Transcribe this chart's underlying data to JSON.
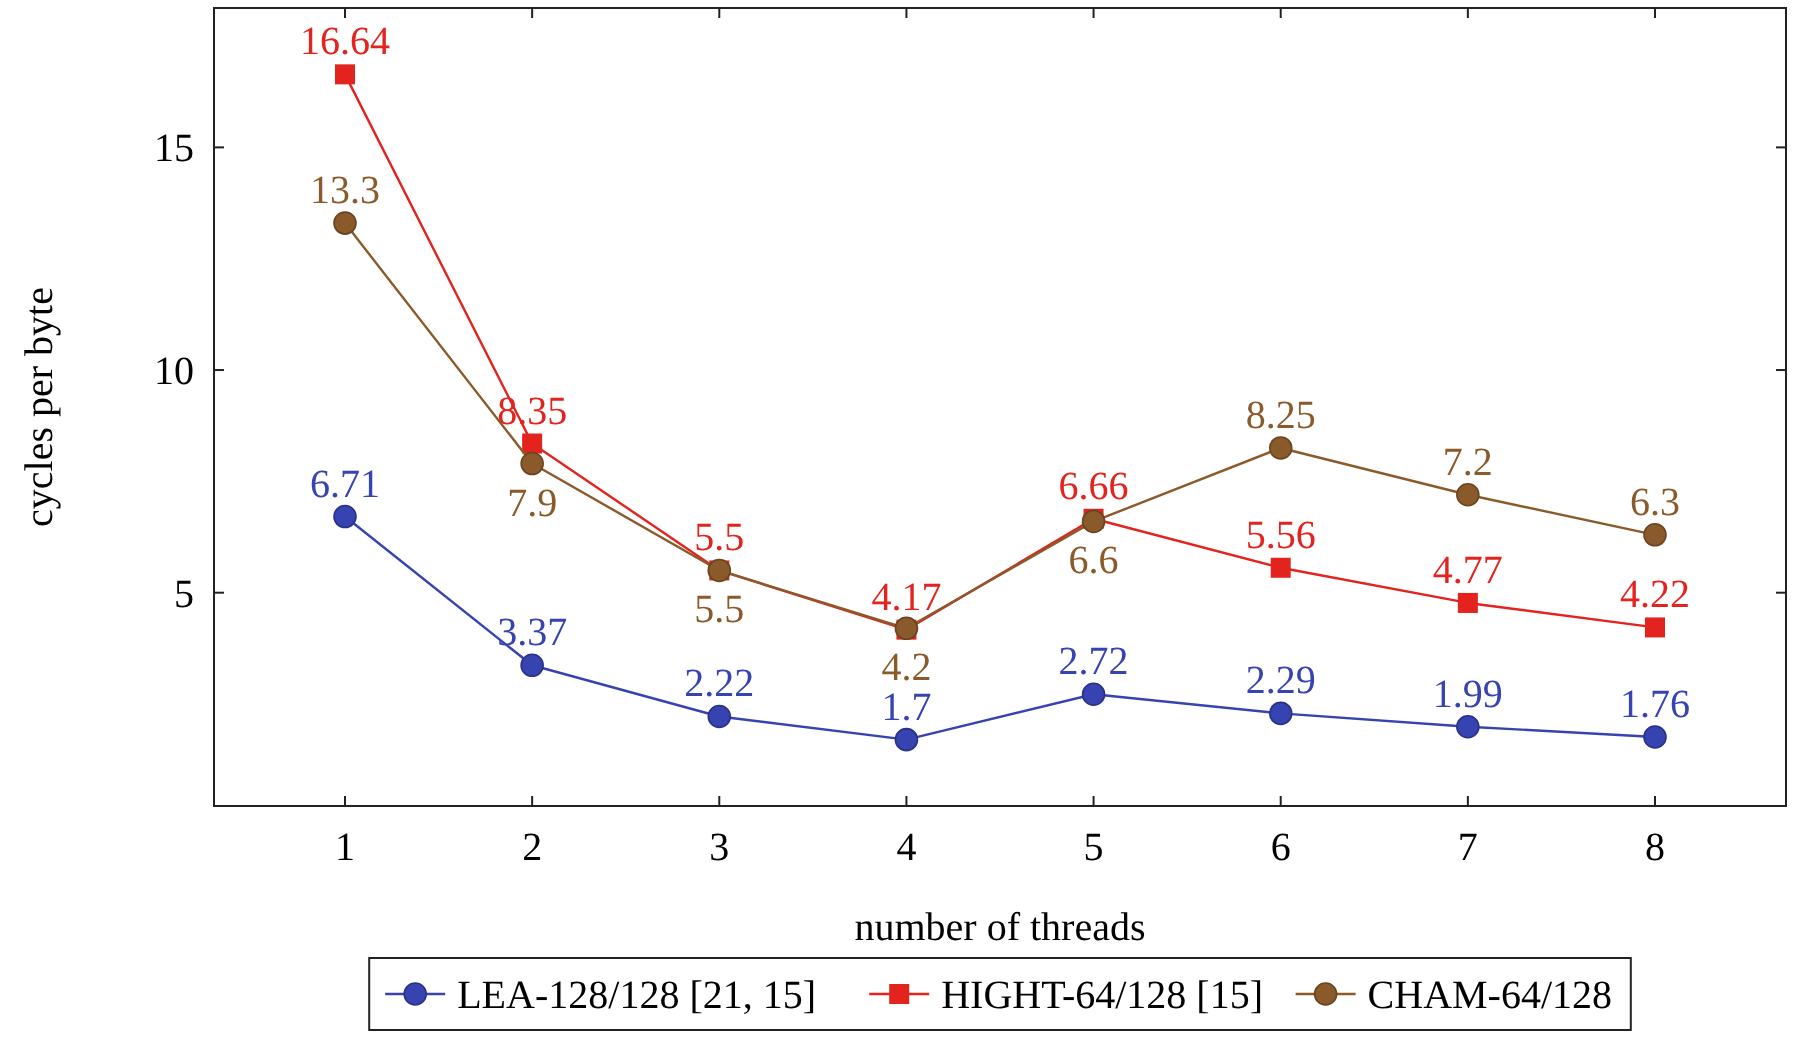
{
  "chart_data": {
    "type": "line",
    "xlabel": "number of threads",
    "ylabel": "cycles per byte",
    "x": [
      1,
      2,
      3,
      4,
      5,
      6,
      7,
      8
    ],
    "xlim": [
      0.3,
      8.7
    ],
    "xticks": [
      1,
      2,
      3,
      4,
      5,
      6,
      7,
      8
    ],
    "ylim": [
      0.21,
      18.13
    ],
    "yticks": [
      5,
      10,
      15
    ],
    "grid": false,
    "legend": "bottom",
    "data_labels": true,
    "series": [
      {
        "name": "LEA-128/128 [21, 15]",
        "color": "#3643b0",
        "marker": "circle",
        "values": [
          6.71,
          3.37,
          2.22,
          1.7,
          2.72,
          2.29,
          1.99,
          1.76
        ]
      },
      {
        "name": "HIGHT-64/128 [15]",
        "color": "#e2231e",
        "marker": "square",
        "values": [
          16.64,
          8.35,
          5.5,
          4.17,
          6.66,
          5.56,
          4.77,
          4.22
        ]
      },
      {
        "name": "CHAM-64/128",
        "color": "#8b5a2b",
        "marker": "circle",
        "values": [
          13.3,
          7.9,
          5.5,
          4.2,
          6.6,
          8.25,
          7.2,
          6.3
        ]
      }
    ]
  }
}
